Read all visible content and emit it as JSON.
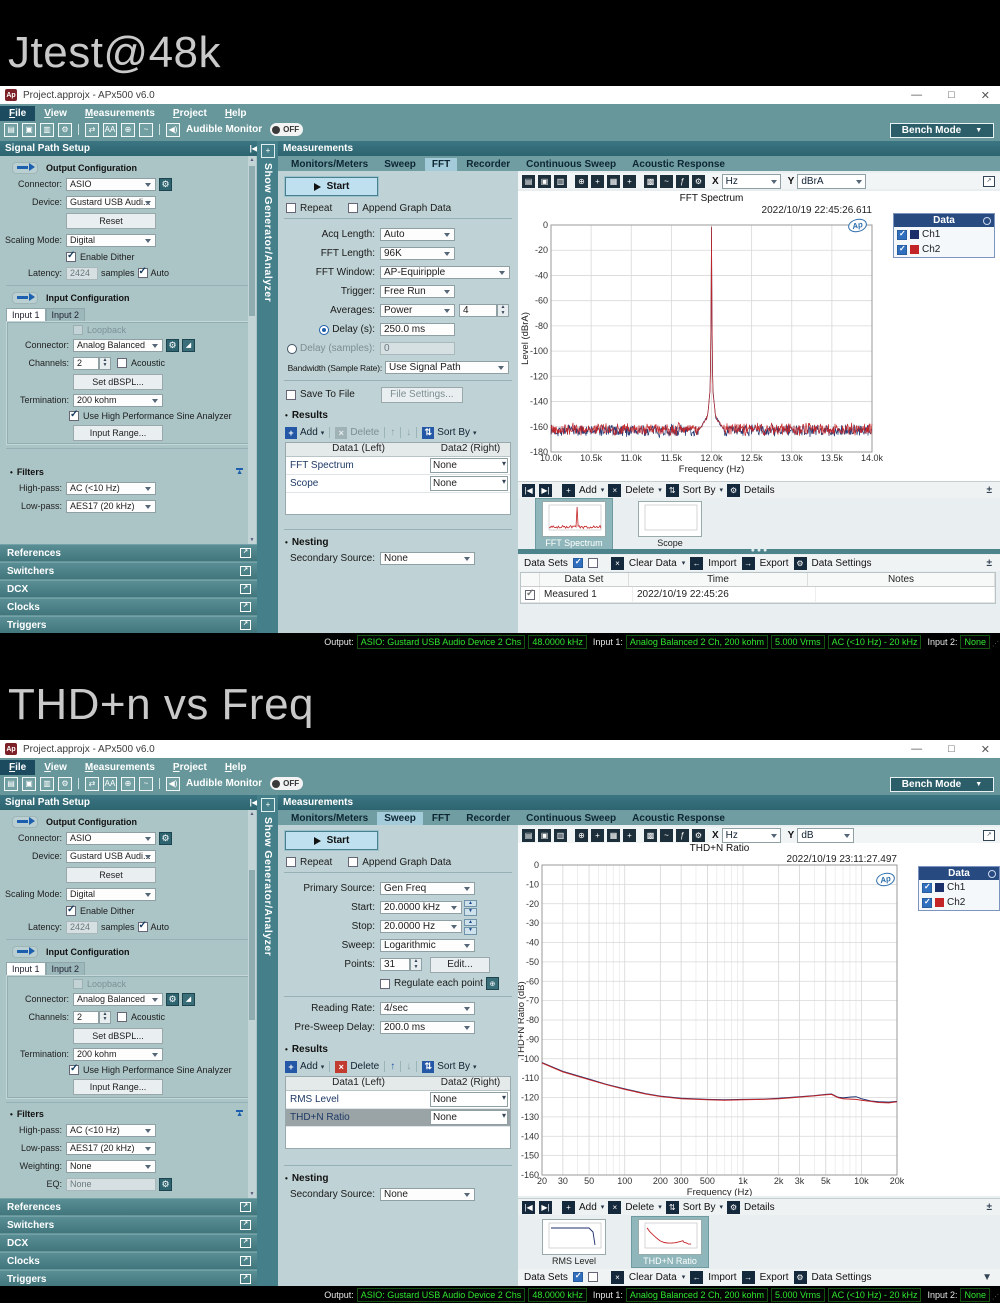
{
  "page": {
    "banner1": "Jtest@48k",
    "banner2": "THD+n vs Freq"
  },
  "chart_data": [
    {
      "id": "fft",
      "type": "line",
      "title": "FFT Spectrum",
      "timestamp": "2022/10/19 22:45:26.611",
      "xlabel": "Frequency (Hz)",
      "ylabel": "Level (dBrA)",
      "xlim": [
        10000,
        14000
      ],
      "ylim": [
        -180,
        0
      ],
      "x_ticks": [
        {
          "v": 10000,
          "label": "10.0k"
        },
        {
          "v": 10500,
          "label": "10.5k"
        },
        {
          "v": 11000,
          "label": "11.0k"
        },
        {
          "v": 11500,
          "label": "11.5k"
        },
        {
          "v": 12000,
          "label": "12.0k"
        },
        {
          "v": 12500,
          "label": "12.5k"
        },
        {
          "v": 13000,
          "label": "13.0k"
        },
        {
          "v": 13500,
          "label": "13.5k"
        },
        {
          "v": 14000,
          "label": "14.0k"
        }
      ],
      "y_ticks": [
        0,
        -20,
        -40,
        -60,
        -80,
        -100,
        -120,
        -140,
        -160,
        -180
      ],
      "grid": true,
      "legend": {
        "title": "Data",
        "position": "right",
        "entries": [
          {
            "label": "Ch1",
            "color": "#1b2f6b",
            "checked": true
          },
          {
            "label": "Ch2",
            "color": "#c32427",
            "checked": true
          }
        ]
      },
      "series": [
        {
          "name": "Ch1",
          "color": "#1b2f6b",
          "noise_floor_db": -163,
          "noise_amp_db": 5.5,
          "tone": {
            "freq_hz": 12000,
            "level_db": -1
          },
          "seed": 7
        },
        {
          "name": "Ch2",
          "color": "#c32427",
          "noise_floor_db": -162,
          "noise_amp_db": 5.5,
          "tone": {
            "freq_hz": 12000,
            "level_db": -1
          },
          "seed": 42
        }
      ],
      "tone_skirt": [
        [
          11840,
          -163
        ],
        [
          11950,
          -152
        ],
        [
          11985,
          -130
        ],
        [
          11996,
          -58
        ],
        [
          12000,
          -1
        ],
        [
          12004,
          -58
        ],
        [
          12015,
          -130
        ],
        [
          12050,
          -152
        ],
        [
          12160,
          -163
        ]
      ]
    },
    {
      "id": "thd",
      "type": "line",
      "title": "THD+N Ratio",
      "timestamp": "2022/10/19 23:11:27.497",
      "xlabel": "Frequency (Hz)",
      "ylabel": "THD+N Ratio (dB)",
      "xscale": "log",
      "xlim": [
        20,
        20000
      ],
      "ylim": [
        -160,
        0
      ],
      "x_ticks": [
        {
          "v": 20,
          "label": "20"
        },
        {
          "v": 30,
          "label": "30"
        },
        {
          "v": 50,
          "label": "50"
        },
        {
          "v": 100,
          "label": "100"
        },
        {
          "v": 200,
          "label": "200"
        },
        {
          "v": 300,
          "label": "300"
        },
        {
          "v": 500,
          "label": "500"
        },
        {
          "v": 1000,
          "label": "1k"
        },
        {
          "v": 2000,
          "label": "2k"
        },
        {
          "v": 3000,
          "label": "3k"
        },
        {
          "v": 5000,
          "label": "5k"
        },
        {
          "v": 10000,
          "label": "10k"
        },
        {
          "v": 20000,
          "label": "20k"
        }
      ],
      "y_ticks": [
        0,
        -10,
        -20,
        -30,
        -40,
        -50,
        -60,
        -70,
        -80,
        -90,
        -100,
        -110,
        -120,
        -130,
        -140,
        -150,
        -160
      ],
      "grid": true,
      "legend": {
        "title": "Data",
        "position": "right",
        "entries": [
          {
            "label": "Ch1",
            "color": "#1b2f6b",
            "checked": true
          },
          {
            "label": "Ch2",
            "color": "#c32427",
            "checked": true
          }
        ]
      },
      "series": [
        {
          "name": "Ch1",
          "color": "#1b2f6b",
          "points": [
            [
              20,
              -102
            ],
            [
              30,
              -106.5
            ],
            [
              50,
              -110.5
            ],
            [
              70,
              -113.2
            ],
            [
              100,
              -115.5
            ],
            [
              150,
              -118
            ],
            [
              200,
              -119.3
            ],
            [
              300,
              -120.4
            ],
            [
              500,
              -121
            ],
            [
              700,
              -121.2
            ],
            [
              1000,
              -121
            ],
            [
              1500,
              -120.8
            ],
            [
              2000,
              -120.4
            ],
            [
              3000,
              -119.6
            ],
            [
              4000,
              -119
            ],
            [
              5000,
              -118.4
            ],
            [
              5600,
              -118.2
            ],
            [
              6300,
              -119.8
            ],
            [
              7000,
              -120.2
            ],
            [
              8000,
              -119.8
            ],
            [
              9000,
              -119.6
            ],
            [
              10000,
              -120.6
            ],
            [
              12000,
              -121.8
            ],
            [
              14000,
              -122.2
            ],
            [
              17000,
              -122.4
            ],
            [
              20000,
              -122
            ]
          ]
        },
        {
          "name": "Ch2",
          "color": "#c32427",
          "points": [
            [
              20,
              -102.2
            ],
            [
              30,
              -106.8
            ],
            [
              50,
              -110.8
            ],
            [
              70,
              -113.4
            ],
            [
              100,
              -115.8
            ],
            [
              150,
              -118.2
            ],
            [
              200,
              -119.5
            ],
            [
              300,
              -120.6
            ],
            [
              500,
              -121.2
            ],
            [
              700,
              -121.4
            ],
            [
              1000,
              -121.2
            ],
            [
              1500,
              -121
            ],
            [
              2000,
              -120.6
            ],
            [
              3000,
              -119.8
            ],
            [
              4000,
              -119.2
            ],
            [
              5000,
              -118.6
            ],
            [
              5600,
              -118.4
            ],
            [
              6300,
              -120
            ],
            [
              7000,
              -120.6
            ],
            [
              8000,
              -120.8
            ],
            [
              9000,
              -121
            ],
            [
              10000,
              -121.4
            ],
            [
              12000,
              -122
            ],
            [
              14000,
              -122.6
            ],
            [
              17000,
              -122.8
            ],
            [
              20000,
              -122.2
            ]
          ]
        }
      ]
    }
  ],
  "win1": {
    "title": "Project.approjx - APx500 v6.0",
    "appicon": "Ap",
    "menu": [
      "File",
      "View",
      "Measurements",
      "Project",
      "Help"
    ],
    "toolbar": {
      "audible_monitor": "Audible Monitor",
      "off": "OFF",
      "bench_mode": "Bench Mode"
    },
    "signal_path": {
      "header": "Signal Path Setup",
      "output_title": "Output Configuration",
      "connector_label": "Connector:",
      "connector": "ASIO",
      "device_label": "Device:",
      "device": "Gustard USB Audi...",
      "reset": "Reset",
      "scaling_label": "Scaling Mode:",
      "scaling": "Digital",
      "enable_dither": "Enable Dither",
      "latency_label": "Latency:",
      "latency": "2424",
      "samples_label": "samples",
      "auto_label": "Auto",
      "input_title": "Input Configuration",
      "input_tabs": [
        "Input 1",
        "Input 2"
      ],
      "loopback": "Loopback",
      "in_connector_label": "Connector:",
      "in_connector": "Analog Balanced",
      "channels_label": "Channels:",
      "channels": "2",
      "acoustic": "Acoustic",
      "set_dbspl": "Set dBSPL...",
      "termination_label": "Termination:",
      "termination": "200 kohm",
      "sine_analyzer": "Use High Performance Sine Analyzer",
      "input_range": "Input Range...",
      "filters_title": "Filters",
      "highpass_label": "High-pass:",
      "highpass": "AC (<10 Hz)",
      "lowpass_label": "Low-pass:",
      "lowpass": "AES17 (20 kHz)",
      "sections": [
        "References",
        "Switchers",
        "DCX",
        "Clocks",
        "Triggers"
      ]
    },
    "strip": "Show Generator/Analyzer",
    "meas": {
      "header": "Measurements",
      "tabs": [
        "Monitors/Meters",
        "Sweep",
        "FFT",
        "Recorder",
        "Continuous Sweep",
        "Acoustic Response"
      ],
      "start": "Start",
      "repeat": "Repeat",
      "append": "Append Graph Data",
      "acq_label": "Acq Length:",
      "acq": "Auto",
      "fftlen_label": "FFT Length:",
      "fftlen": "96K",
      "fftwin_label": "FFT Window:",
      "fftwin": "AP-Equiripple",
      "trigger_label": "Trigger:",
      "trigger": "Free Run",
      "avg_label": "Averages:",
      "avg": "Power",
      "avg_n": "4",
      "delay_s_label": "Delay (s):",
      "delay_s": "250.0 ms",
      "delay_smp_label": "Delay (samples):",
      "delay_smp": "0",
      "bw_label": "Bandwidth (Sample Rate):",
      "bw": "Use Signal Path",
      "save_to_file": "Save To File",
      "file_settings": "File Settings...",
      "results_title": "Results",
      "add": "Add",
      "delete": "Delete",
      "sort_by": "Sort By",
      "col_left": "Data1 (Left)",
      "col_right": "Data2 (Right)",
      "rows": [
        {
          "name": "FFT Spectrum",
          "right": "None"
        },
        {
          "name": "Scope",
          "right": "None"
        }
      ],
      "nesting_title": "Nesting",
      "secondary_label": "Secondary Source:",
      "secondary": "None"
    },
    "graph": {
      "x_label": "X",
      "x_unit": "Hz",
      "y_label": "Y",
      "y_unit": "dBrA",
      "logo": "Ap",
      "nav": {
        "add": "Add",
        "delete": "Delete",
        "sort_by": "Sort By",
        "details": "Details"
      },
      "thumbs": [
        {
          "label": "FFT Spectrum",
          "shape": "fft"
        },
        {
          "label": "Scope",
          "shape": "scope"
        }
      ],
      "datasets": {
        "label": "Data Sets",
        "clear": "Clear Data",
        "import": "Import",
        "export": "Export",
        "settings": "Data Settings"
      },
      "table": {
        "cols": [
          "Data Set",
          "Time",
          "Notes"
        ],
        "row": {
          "name": "Measured 1",
          "time": "2022/10/19 22:45:26",
          "notes": ""
        }
      }
    },
    "status": {
      "output_label": "Output:",
      "output_badges": [
        "ASIO: Gustard USB Audio Device 2 Chs",
        "48.0000 kHz"
      ],
      "input1_label": "Input 1:",
      "input1_badges": [
        "Analog Balanced 2 Ch, 200 kohm",
        "5.000 Vrms",
        "AC (<10 Hz) - 20 kHz"
      ],
      "input2_label": "Input 2:",
      "input2_badge": "None"
    }
  },
  "win2": {
    "title": "Project.approjx - APx500 v6.0",
    "appicon": "Ap",
    "menu": [
      "File",
      "View",
      "Measurements",
      "Project",
      "Help"
    ],
    "toolbar": {
      "audible_monitor": "Audible Monitor",
      "off": "OFF",
      "bench_mode": "Bench Mode"
    },
    "signal_path": {
      "header": "Signal Path Setup",
      "output_title": "Output Configuration",
      "connector_label": "Connector:",
      "connector": "ASIO",
      "device_label": "Device:",
      "device": "Gustard USB Audi...",
      "reset": "Reset",
      "scaling_label": "Scaling Mode:",
      "scaling": "Digital",
      "enable_dither": "Enable Dither",
      "latency_label": "Latency:",
      "latency": "2424",
      "samples_label": "samples",
      "auto_label": "Auto",
      "input_title": "Input Configuration",
      "input_tabs": [
        "Input 1",
        "Input 2"
      ],
      "loopback": "Loopback",
      "in_connector_label": "Connector:",
      "in_connector": "Analog Balanced",
      "channels_label": "Channels:",
      "channels": "2",
      "acoustic": "Acoustic",
      "set_dbspl": "Set dBSPL...",
      "termination_label": "Termination:",
      "termination": "200 kohm",
      "sine_analyzer": "Use High Performance Sine Analyzer",
      "input_range": "Input Range...",
      "filters_title": "Filters",
      "highpass_label": "High-pass:",
      "highpass": "AC (<10 Hz)",
      "lowpass_label": "Low-pass:",
      "lowpass": "AES17 (20 kHz)",
      "weighting_label": "Weighting:",
      "weighting": "None",
      "eq_label": "EQ:",
      "eq": "None",
      "sections": [
        "References",
        "Switchers",
        "DCX",
        "Clocks",
        "Triggers"
      ]
    },
    "strip": "Show Generator/Analyzer",
    "meas": {
      "header": "Measurements",
      "tabs": [
        "Monitors/Meters",
        "Sweep",
        "FFT",
        "Recorder",
        "Continuous Sweep",
        "Acoustic Response"
      ],
      "start": "Start",
      "repeat": "Repeat",
      "append": "Append Graph Data",
      "primary_label": "Primary Source:",
      "primary": "Gen Freq",
      "start_label": "Start:",
      "start_val": "20.0000 kHz",
      "stop_label": "Stop:",
      "stop_val": "20.0000 Hz",
      "sweep_label": "Sweep:",
      "sweep": "Logarithmic",
      "points_label": "Points:",
      "points": "31",
      "edit": "Edit...",
      "regulate": "Regulate each point",
      "rate_label": "Reading Rate:",
      "rate": "4/sec",
      "presweep_label": "Pre-Sweep Delay:",
      "presweep": "200.0 ms",
      "results_title": "Results",
      "add": "Add",
      "delete": "Delete",
      "sort_by": "Sort By",
      "col_left": "Data1 (Left)",
      "col_right": "Data2 (Right)",
      "rows": [
        {
          "name": "RMS Level",
          "right": "None"
        },
        {
          "name": "THD+N Ratio",
          "right": "None"
        }
      ],
      "nesting_title": "Nesting",
      "secondary_label": "Secondary Source:",
      "secondary": "None"
    },
    "graph": {
      "x_label": "X",
      "x_unit": "Hz",
      "y_label": "Y",
      "y_unit": "dB",
      "logo": "Ap",
      "nav": {
        "add": "Add",
        "delete": "Delete",
        "sort_by": "Sort By",
        "details": "Details"
      },
      "thumbs": [
        {
          "label": "RMS Level",
          "shape": "rms"
        },
        {
          "label": "THD+N Ratio",
          "shape": "thd"
        }
      ],
      "datasets": {
        "label": "Data Sets",
        "clear": "Clear Data",
        "import": "Import",
        "export": "Export",
        "settings": "Data Settings"
      }
    },
    "status": {
      "output_label": "Output:",
      "output_badges": [
        "ASIO: Gustard USB Audio Device 2 Chs",
        "48.0000 kHz"
      ],
      "input1_label": "Input 1:",
      "input1_badges": [
        "Analog Balanced 2 Ch, 200 kohm",
        "5.000 Vrms",
        "AC (<10 Hz) - 20 kHz"
      ],
      "input2_label": "Input 2:",
      "input2_badge": "None"
    }
  }
}
